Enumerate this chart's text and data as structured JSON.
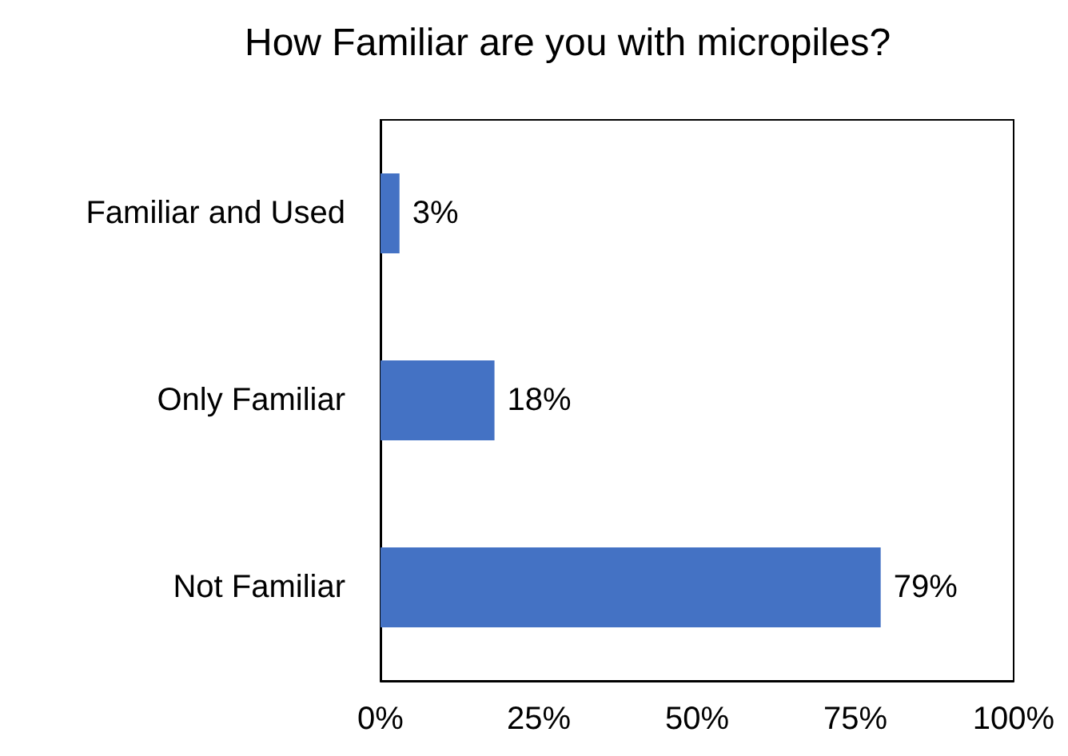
{
  "chart_data": {
    "type": "bar",
    "orientation": "horizontal",
    "title": "How Familiar are you with micropiles?",
    "categories": [
      "Familiar and Used",
      "Only Familiar",
      "Not Familiar"
    ],
    "values": [
      3,
      18,
      79
    ],
    "color": "#4472c4",
    "value_labels": [
      "3%",
      "18%",
      "79%"
    ],
    "xlim": [
      0,
      100
    ],
    "xticks": [
      {
        "value": 0,
        "label": "0%"
      },
      {
        "value": 25,
        "label": "25%"
      },
      {
        "value": 50,
        "label": "50%"
      },
      {
        "value": 75,
        "label": "75%"
      },
      {
        "value": 100,
        "label": "100%"
      }
    ],
    "grid": false
  }
}
